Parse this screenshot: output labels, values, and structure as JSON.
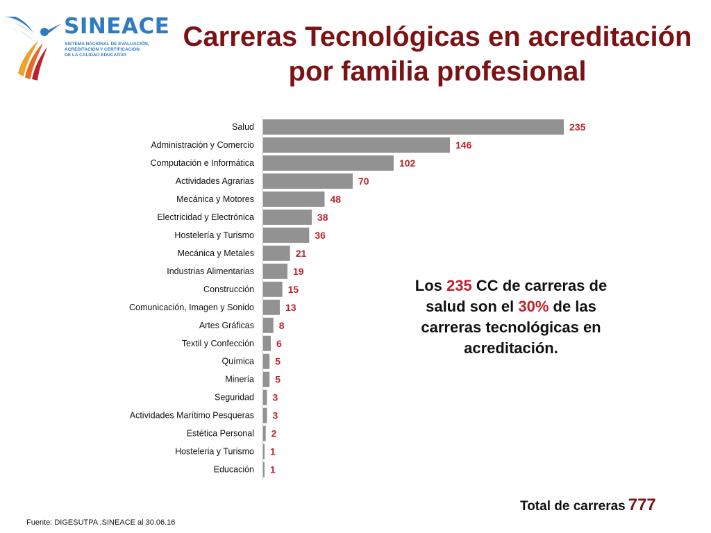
{
  "logo": {
    "name": "SINEACE",
    "subtitle": [
      "SISTEMA NACIONAL DE EVALUACIÓN,",
      "ACREDITACIÓN Y CERTIFICACIÓN",
      "DE LA CALIDAD EDUCATIVA"
    ]
  },
  "title": {
    "line1": "Carreras Tecnológicas en acreditación",
    "line2": "por familia profesional"
  },
  "note": {
    "part1": "Los ",
    "value1": "235",
    "part2": " CC de carreras de salud son el ",
    "value2": "30%",
    "part3": " de las carreras tecnológicas en acreditación."
  },
  "total": {
    "label": "Total de carreras",
    "value": "777"
  },
  "source": "Fuente: DIGESUTPA .SINEACE al 30.06.16",
  "colors": {
    "bar": "#929292",
    "value_label": "#c0202a",
    "title": "#7b1214",
    "logo": "#2f7bc0"
  },
  "chart_data": {
    "type": "bar",
    "orientation": "horizontal",
    "title": "",
    "xlabel": "",
    "ylabel": "",
    "xlim": [
      0,
      235
    ],
    "grid": false,
    "legend": "none",
    "categories": [
      "Salud",
      "Administración y Comercio",
      "Computación e Informática",
      "Actividades Agrarias",
      "Mecánica y Motores",
      "Electricidad y Electrónica",
      "Hostelería y Turismo",
      "Mecánica y Metales",
      "Industrias Alimentarias",
      "Construcción",
      "Comunicación, Imagen y Sonido",
      "Artes Gráficas",
      "Textil y Confección",
      "Química",
      "Minería",
      "Seguridad",
      "Actividades Marítimo Pesqueras",
      "Estética Personal",
      "Hosteleria y Turismo",
      "Educación"
    ],
    "values": [
      235,
      146,
      102,
      70,
      48,
      38,
      36,
      21,
      19,
      15,
      13,
      8,
      6,
      5,
      5,
      3,
      3,
      2,
      1,
      1
    ]
  }
}
